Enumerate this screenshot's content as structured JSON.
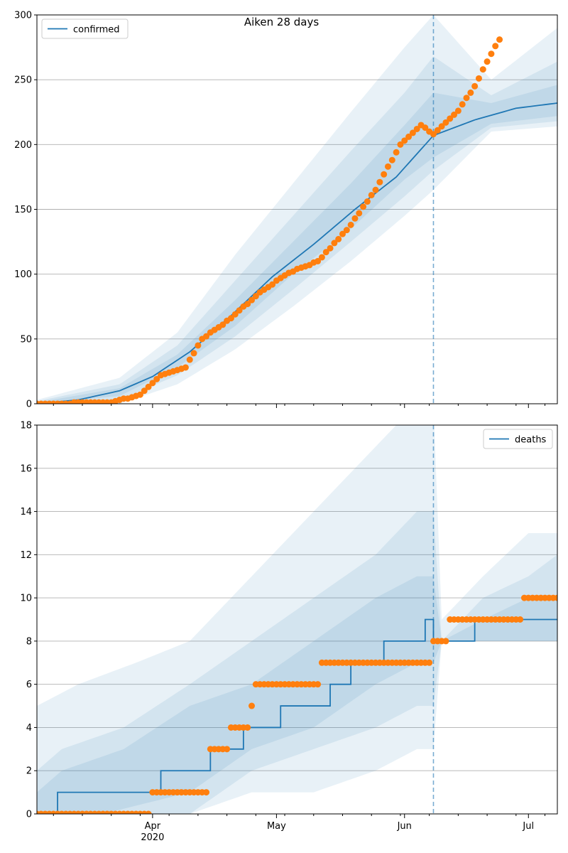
{
  "chart_data": [
    {
      "type": "line",
      "title": "Aiken 28 days",
      "ylim": [
        0,
        300
      ],
      "yticks": [
        0,
        50,
        100,
        150,
        200,
        250,
        300
      ],
      "grid": "y",
      "legend_position": "top-left",
      "vline_date": "2020-06-08",
      "x_range": [
        "2020-03-04",
        "2020-07-08"
      ],
      "series": [
        {
          "name": "confirmed",
          "kind": "model-median",
          "color": "#1f77b4",
          "points": [
            [
              "2020-03-04",
              0
            ],
            [
              "2020-03-14",
              3
            ],
            [
              "2020-03-24",
              10
            ],
            [
              "2020-04-01",
              21
            ],
            [
              "2020-04-10",
              40
            ],
            [
              "2020-04-20",
              68
            ],
            [
              "2020-04-30",
              98
            ],
            [
              "2020-05-10",
              123
            ],
            [
              "2020-05-20",
              150
            ],
            [
              "2020-05-30",
              175
            ],
            [
              "2020-06-08",
              207
            ],
            [
              "2020-06-18",
              219
            ],
            [
              "2020-06-28",
              228
            ],
            [
              "2020-07-08",
              232
            ]
          ]
        },
        {
          "kind": "observed",
          "color": "#ff7f0e",
          "points": [
            [
              "2020-03-04",
              0
            ],
            [
              "2020-03-22",
              1
            ],
            [
              "2020-03-29",
              7
            ],
            [
              "2020-04-03",
              22
            ],
            [
              "2020-04-09",
              28
            ],
            [
              "2020-04-13",
              50
            ],
            [
              "2020-04-20",
              66
            ],
            [
              "2020-04-27",
              86
            ],
            [
              "2020-05-04",
              101
            ],
            [
              "2020-05-11",
              110
            ],
            [
              "2020-05-18",
              134
            ],
            [
              "2020-05-25",
              165
            ],
            [
              "2020-05-31",
              200
            ],
            [
              "2020-06-05",
              215
            ],
            [
              "2020-06-08",
              208
            ],
            [
              "2020-06-14",
              226
            ],
            [
              "2020-06-18",
              245
            ],
            [
              "2020-06-22",
              270
            ],
            [
              "2020-06-24",
              281
            ]
          ]
        }
      ],
      "bands": {
        "color": "#1f77b4",
        "levels": [
          {
            "upper": [
              [
                "2020-03-04",
                3
              ],
              [
                "2020-03-24",
                20
              ],
              [
                "2020-04-07",
                55
              ],
              [
                "2020-04-21",
                115
              ],
              [
                "2020-05-05",
                170
              ],
              [
                "2020-05-19",
                225
              ],
              [
                "2020-06-01",
                275
              ],
              [
                "2020-06-08",
                300
              ],
              [
                "2020-06-22",
                250
              ],
              [
                "2020-07-08",
                290
              ]
            ],
            "lower": [
              [
                "2020-03-04",
                0
              ],
              [
                "2020-03-24",
                0
              ],
              [
                "2020-04-07",
                15
              ],
              [
                "2020-04-21",
                42
              ],
              [
                "2020-05-05",
                75
              ],
              [
                "2020-05-19",
                110
              ],
              [
                "2020-06-01",
                145
              ],
              [
                "2020-06-08",
                165
              ],
              [
                "2020-06-22",
                210
              ],
              [
                "2020-07-08",
                214
              ]
            ]
          },
          {
            "upper": [
              [
                "2020-03-04",
                2
              ],
              [
                "2020-03-24",
                15
              ],
              [
                "2020-04-07",
                45
              ],
              [
                "2020-04-21",
                95
              ],
              [
                "2020-05-05",
                145
              ],
              [
                "2020-05-19",
                195
              ],
              [
                "2020-06-01",
                240
              ],
              [
                "2020-06-08",
                268
              ],
              [
                "2020-06-22",
                238
              ],
              [
                "2020-07-08",
                264
              ]
            ],
            "lower": [
              [
                "2020-03-04",
                0
              ],
              [
                "2020-03-24",
                3
              ],
              [
                "2020-04-07",
                22
              ],
              [
                "2020-04-21",
                52
              ],
              [
                "2020-05-05",
                88
              ],
              [
                "2020-05-19",
                125
              ],
              [
                "2020-06-01",
                160
              ],
              [
                "2020-06-08",
                180
              ],
              [
                "2020-06-22",
                213
              ],
              [
                "2020-07-08",
                218
              ]
            ]
          },
          {
            "upper": [
              [
                "2020-03-04",
                1
              ],
              [
                "2020-03-24",
                12
              ],
              [
                "2020-04-07",
                38
              ],
              [
                "2020-04-21",
                80
              ],
              [
                "2020-05-05",
                125
              ],
              [
                "2020-05-19",
                170
              ],
              [
                "2020-06-01",
                215
              ],
              [
                "2020-06-08",
                240
              ],
              [
                "2020-06-22",
                232
              ],
              [
                "2020-07-08",
                246
              ]
            ],
            "lower": [
              [
                "2020-03-04",
                0
              ],
              [
                "2020-03-24",
                6
              ],
              [
                "2020-04-07",
                28
              ],
              [
                "2020-04-21",
                60
              ],
              [
                "2020-05-05",
                100
              ],
              [
                "2020-05-19",
                135
              ],
              [
                "2020-06-01",
                173
              ],
              [
                "2020-06-08",
                190
              ],
              [
                "2020-06-22",
                216
              ],
              [
                "2020-07-08",
                222
              ]
            ]
          }
        ]
      }
    },
    {
      "type": "line",
      "ylim": [
        0,
        18
      ],
      "yticks": [
        0,
        2,
        4,
        6,
        8,
        10,
        12,
        14,
        16,
        18
      ],
      "grid": "y",
      "legend_position": "top-right",
      "vline_date": "2020-06-08",
      "x_range": [
        "2020-03-04",
        "2020-07-08"
      ],
      "xtick_labels": [
        {
          "date": "2020-04-01",
          "label": "Apr",
          "sub": "2020"
        },
        {
          "date": "2020-05-01",
          "label": "May",
          "sub": ""
        },
        {
          "date": "2020-06-01",
          "label": "Jun",
          "sub": ""
        },
        {
          "date": "2020-07-01",
          "label": "Jul",
          "sub": ""
        }
      ],
      "series": [
        {
          "name": "deaths",
          "kind": "model-median-step",
          "color": "#1f77b4",
          "steps": [
            [
              "2020-03-04",
              0
            ],
            [
              "2020-03-09",
              1
            ],
            [
              "2020-04-03",
              2
            ],
            [
              "2020-04-15",
              3
            ],
            [
              "2020-04-23",
              4
            ],
            [
              "2020-04-29",
              4
            ],
            [
              "2020-05-02",
              5
            ],
            [
              "2020-05-08",
              5
            ],
            [
              "2020-05-14",
              6
            ],
            [
              "2020-05-19",
              7
            ],
            [
              "2020-05-27",
              8
            ],
            [
              "2020-06-06",
              9
            ],
            [
              "2020-06-08",
              8
            ],
            [
              "2020-06-18",
              9
            ],
            [
              "2020-07-08",
              9
            ]
          ]
        },
        {
          "kind": "observed",
          "color": "#ff7f0e",
          "steps": [
            [
              "2020-03-04",
              0
            ],
            [
              "2020-04-01",
              1
            ],
            [
              "2020-04-15",
              3
            ],
            [
              "2020-04-20",
              4
            ],
            [
              "2020-04-25",
              5
            ],
            [
              "2020-04-26",
              6
            ],
            [
              "2020-05-12",
              7
            ],
            [
              "2020-06-08",
              8
            ],
            [
              "2020-06-12",
              9
            ],
            [
              "2020-06-30",
              10
            ],
            [
              "2020-07-08",
              10
            ]
          ]
        }
      ],
      "bands": {
        "color": "#1f77b4",
        "levels": [
          {
            "upper": [
              [
                "2020-03-04",
                5
              ],
              [
                "2020-03-14",
                6
              ],
              [
                "2020-03-28",
                7
              ],
              [
                "2020-04-10",
                8
              ],
              [
                "2020-04-25",
                11
              ],
              [
                "2020-05-10",
                14
              ],
              [
                "2020-05-25",
                17
              ],
              [
                "2020-06-04",
                19
              ],
              [
                "2020-06-08",
                19
              ],
              [
                "2020-06-10",
                9
              ],
              [
                "2020-06-20",
                11
              ],
              [
                "2020-07-01",
                13
              ],
              [
                "2020-07-08",
                13
              ]
            ],
            "lower": [
              [
                "2020-03-04",
                0
              ],
              [
                "2020-04-10",
                0
              ],
              [
                "2020-04-25",
                1
              ],
              [
                "2020-05-10",
                1
              ],
              [
                "2020-05-25",
                2
              ],
              [
                "2020-06-04",
                3
              ],
              [
                "2020-06-08",
                3
              ],
              [
                "2020-06-10",
                8
              ],
              [
                "2020-07-08",
                8
              ]
            ]
          },
          {
            "upper": [
              [
                "2020-03-04",
                2
              ],
              [
                "2020-03-10",
                3
              ],
              [
                "2020-03-25",
                4
              ],
              [
                "2020-04-10",
                6
              ],
              [
                "2020-04-25",
                8
              ],
              [
                "2020-05-10",
                10
              ],
              [
                "2020-05-25",
                12
              ],
              [
                "2020-06-04",
                14
              ],
              [
                "2020-06-08",
                14
              ],
              [
                "2020-06-10",
                8
              ],
              [
                "2020-06-20",
                10
              ],
              [
                "2020-07-01",
                11
              ],
              [
                "2020-07-08",
                12
              ]
            ],
            "lower": [
              [
                "2020-03-04",
                0
              ],
              [
                "2020-04-10",
                0
              ],
              [
                "2020-04-25",
                2
              ],
              [
                "2020-05-10",
                3
              ],
              [
                "2020-05-25",
                4
              ],
              [
                "2020-06-04",
                5
              ],
              [
                "2020-06-08",
                5
              ],
              [
                "2020-06-10",
                8
              ],
              [
                "2020-07-08",
                8
              ]
            ]
          },
          {
            "upper": [
              [
                "2020-03-04",
                1
              ],
              [
                "2020-03-10",
                2
              ],
              [
                "2020-03-25",
                3
              ],
              [
                "2020-04-10",
                5
              ],
              [
                "2020-04-25",
                6
              ],
              [
                "2020-05-10",
                8
              ],
              [
                "2020-05-25",
                10
              ],
              [
                "2020-06-04",
                11
              ],
              [
                "2020-06-08",
                11
              ],
              [
                "2020-06-10",
                8
              ],
              [
                "2020-06-20",
                9
              ],
              [
                "2020-07-01",
                10
              ],
              [
                "2020-07-08",
                10
              ]
            ],
            "lower": [
              [
                "2020-03-04",
                0
              ],
              [
                "2020-03-20",
                0
              ],
              [
                "2020-04-10",
                1
              ],
              [
                "2020-04-25",
                3
              ],
              [
                "2020-05-10",
                4
              ],
              [
                "2020-05-25",
                6
              ],
              [
                "2020-06-04",
                7
              ],
              [
                "2020-06-08",
                7
              ],
              [
                "2020-06-10",
                8
              ],
              [
                "2020-07-08",
                8
              ]
            ]
          }
        ]
      }
    }
  ]
}
